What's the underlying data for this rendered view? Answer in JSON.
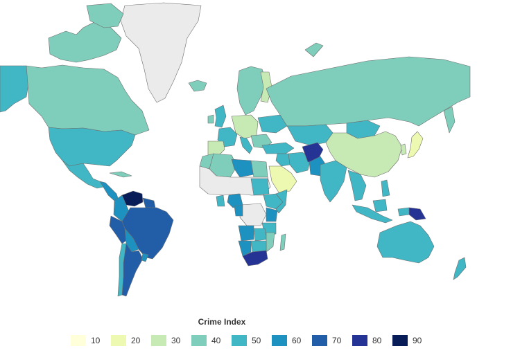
{
  "map": {
    "fill_colors": {
      "no_data": "#ebebeb",
      "c10": "#ffffd9",
      "c20": "#edf8b1",
      "c30": "#c7e9b4",
      "c40": "#7fcdbb",
      "c50": "#41b6c4",
      "c60": "#1d91c0",
      "c70": "#225ea8",
      "c80": "#253494",
      "c90": "#081d58"
    },
    "border_color": "#6e6e6e"
  },
  "legend": {
    "title": "Crime Index",
    "items": [
      {
        "label": "10",
        "color": "#ffffd9"
      },
      {
        "label": "20",
        "color": "#edf8b1"
      },
      {
        "label": "30",
        "color": "#c7e9b4"
      },
      {
        "label": "40",
        "color": "#7fcdbb"
      },
      {
        "label": "50",
        "color": "#41b6c4"
      },
      {
        "label": "60",
        "color": "#1d91c0"
      },
      {
        "label": "70",
        "color": "#225ea8"
      },
      {
        "label": "80",
        "color": "#253494"
      },
      {
        "label": "90",
        "color": "#081d58"
      }
    ]
  }
}
